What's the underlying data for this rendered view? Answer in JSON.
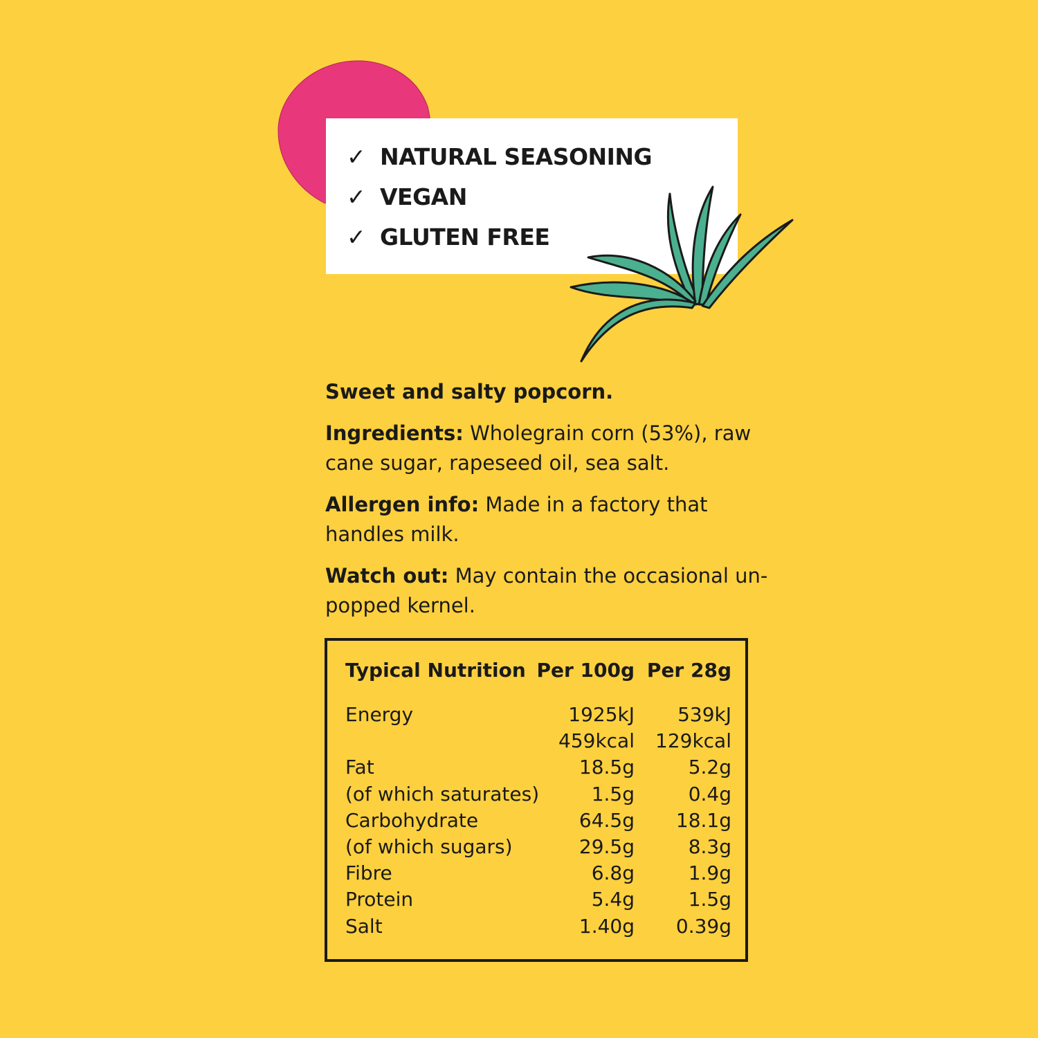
{
  "colors": {
    "background": "#FDD03F",
    "blob": "#E8377A",
    "leaf": "#4BB08F",
    "box": "#FFFFFF",
    "text": "#1A1A1A"
  },
  "claims": [
    {
      "icon": "check-icon",
      "label": "NATURAL SEASONING"
    },
    {
      "icon": "check-icon",
      "label": "VEGAN"
    },
    {
      "icon": "check-icon",
      "label": "GLUTEN FREE"
    }
  ],
  "description": {
    "tagline": "Sweet and salty popcorn.",
    "ingredients": {
      "label": "Ingredients:",
      "text": " Wholegrain corn (53%), raw cane sugar, rapeseed oil, sea salt."
    },
    "allergen": {
      "label": "Allergen info:",
      "text": " Made in a factory that handles milk."
    },
    "watch_out": {
      "label": "Watch out:",
      "text": " May contain the occasional un-popped kernel."
    }
  },
  "nutrition": {
    "headers": [
      "Typical Nutrition",
      "Per 100g",
      "Per 28g"
    ],
    "rows": [
      [
        "Energy",
        "1925kJ",
        "539kJ"
      ],
      [
        "",
        "459kcal",
        "129kcal"
      ],
      [
        "Fat",
        "18.5g",
        "5.2g"
      ],
      [
        "(of which saturates)",
        "1.5g",
        "0.4g"
      ],
      [
        "Carbohydrate",
        "64.5g",
        "18.1g"
      ],
      [
        "(of which sugars)",
        "29.5g",
        "8.3g"
      ],
      [
        "Fibre",
        "6.8g",
        "1.9g"
      ],
      [
        "Protein",
        "5.4g",
        "1.5g"
      ],
      [
        "Salt",
        "1.40g",
        "0.39g"
      ]
    ]
  }
}
